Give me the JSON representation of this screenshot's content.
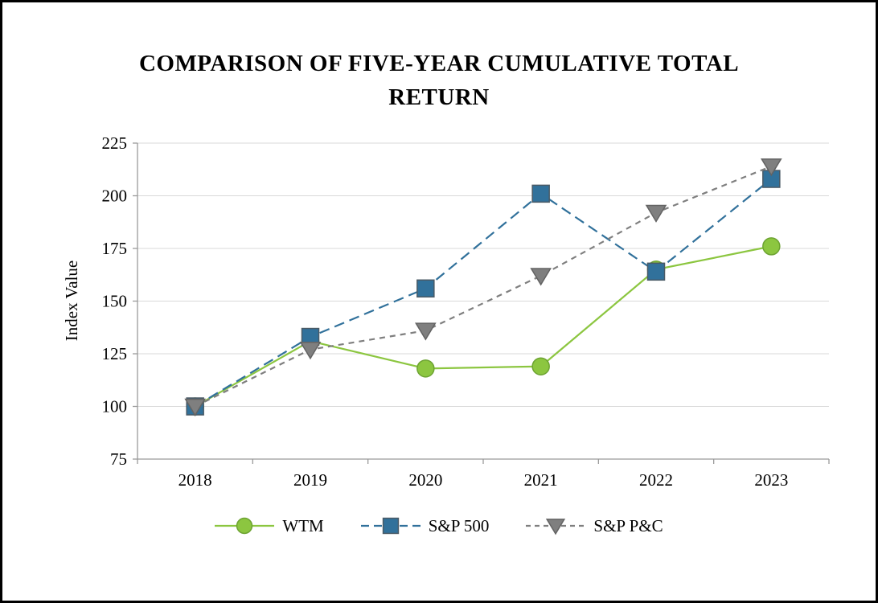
{
  "page": {
    "title_line1": "COMPARISON OF FIVE-YEAR CUMULATIVE TOTAL",
    "title_line2": "RETURN"
  },
  "chart_data": {
    "type": "line",
    "title": "COMPARISON OF FIVE-YEAR CUMULATIVE TOTAL RETURN",
    "xlabel": "",
    "ylabel": "Index Value",
    "categories": [
      "2018",
      "2019",
      "2020",
      "2021",
      "2022",
      "2023"
    ],
    "yticks": [
      75,
      100,
      125,
      150,
      175,
      200,
      225
    ],
    "ylim": [
      75,
      225
    ],
    "grid": true,
    "legend_position": "bottom",
    "series": [
      {
        "name": "WTM",
        "values": [
          100,
          131,
          118,
          119,
          165,
          176
        ],
        "color": "#8cc640",
        "outline": "#6da332",
        "marker": "circle",
        "dash": "solid"
      },
      {
        "name": "S&P 500",
        "values": [
          100,
          133,
          156,
          201,
          164,
          208
        ],
        "color": "#31719b",
        "outline": "#4a5a66",
        "marker": "square",
        "dash": "dashed"
      },
      {
        "name": "S&P P&C",
        "values": [
          100,
          127,
          136,
          162,
          192,
          214
        ],
        "color": "#7f7f7f",
        "outline": "#636363",
        "marker": "triangle-down",
        "dash": "dashed"
      }
    ]
  }
}
